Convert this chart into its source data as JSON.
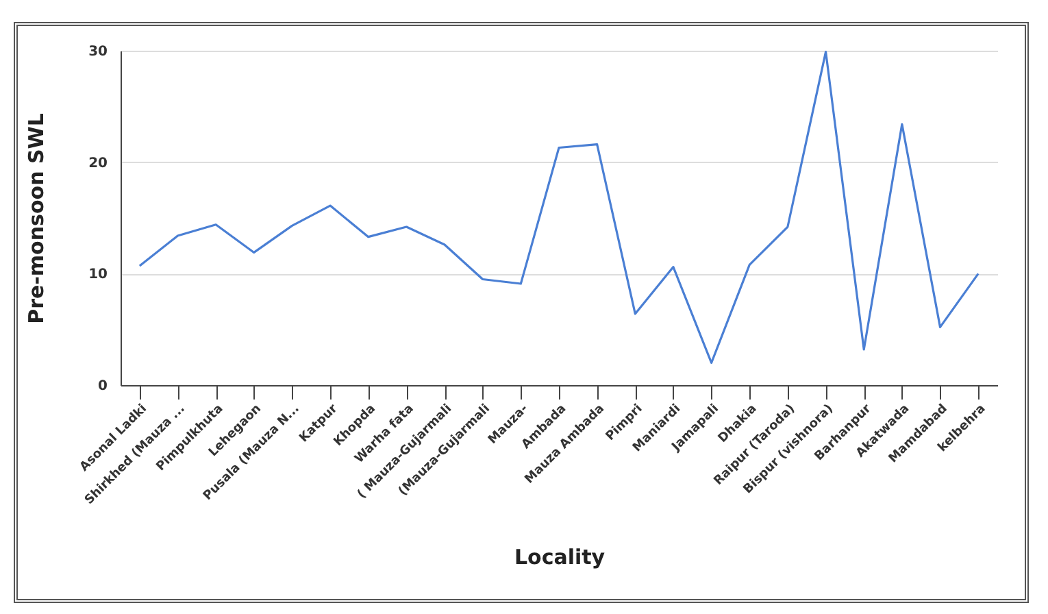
{
  "chart_data": {
    "type": "line",
    "xlabel": "Locality",
    "ylabel": "Pre-monsoon SWL",
    "categories": [
      "Asonal Ladki",
      "Shirkhed (Mauza ...",
      "Pimpulkhuta",
      "Lehegaon",
      "Pusala (Mauza N...",
      "Katpur",
      "Khopda",
      "Warha fata",
      "( Mauza-Gujarmali",
      "(Mauza-Gujarmali",
      "Mauza-",
      "Ambada",
      "Mauza Ambada",
      "Pimpri",
      "Maniardi",
      "Jamapali",
      "Dhakia",
      "Raipur (Taroda)",
      "Bispur (vishnora)",
      "Barhanpur",
      "Akatwada",
      "Mamdabad",
      "kelbehra"
    ],
    "series": [
      {
        "color": "#4a7fd4",
        "values": [
          10.7,
          13.4,
          14.4,
          11.9,
          14.3,
          16.1,
          13.3,
          14.2,
          12.6,
          9.5,
          9.1,
          21.3,
          21.6,
          6.4,
          10.6,
          2.0,
          10.8,
          14.2,
          29.9,
          3.2,
          23.4,
          5.2,
          10.0
        ]
      }
    ],
    "ylim": [
      0,
      30
    ],
    "yticks": [
      0,
      10,
      20,
      30
    ],
    "grid": "y",
    "legend": false,
    "marker": "none",
    "line_style": "solid"
  }
}
